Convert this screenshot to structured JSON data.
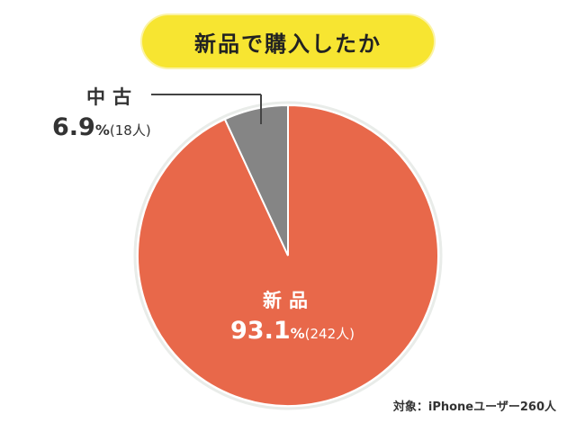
{
  "title": "新品で購入したか",
  "chart_data": {
    "type": "pie",
    "slices": [
      {
        "label": "新品",
        "value": 93.1,
        "count_text": "(242人)",
        "color": "#e8684a"
      },
      {
        "label": "中古",
        "value": 6.9,
        "count_text": "(18人)",
        "color": "#858585"
      }
    ],
    "value_suffix": "%",
    "note": "対象：iPhoneユーザー260人"
  }
}
